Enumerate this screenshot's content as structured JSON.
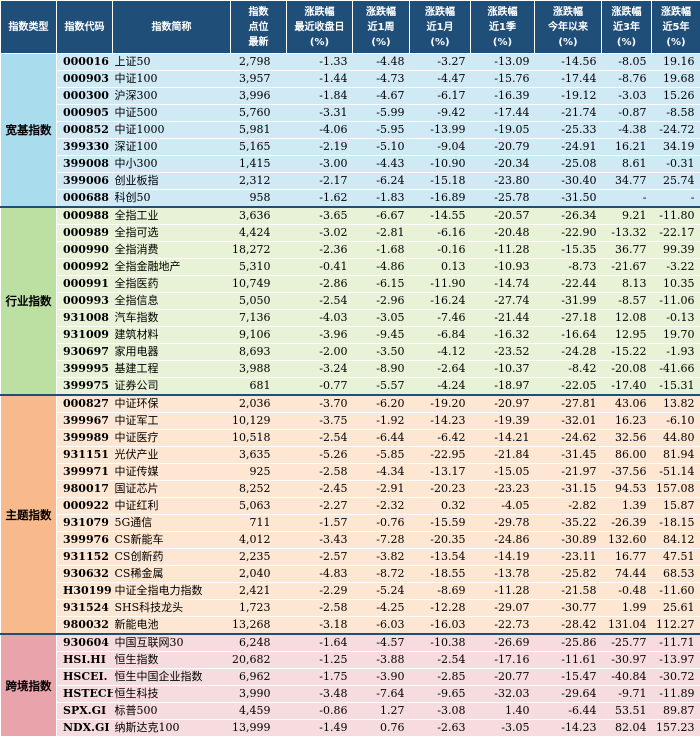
{
  "headers": [
    "指数类型",
    "指数代码",
    "指数简称",
    "指数\n点位\n最新",
    "涨跌幅\n最近收盘日\n(%)",
    "涨跌幅\n近1周\n(%)",
    "涨跌幅\n近1月\n(%)",
    "涨跌幅\n近1季\n(%)",
    "涨跌幅\n今年以来\n(%)",
    "涨跌幅\n近3年\n(%)",
    "涨跌幅\n近5年\n(%)"
  ],
  "groups": [
    {
      "label": "宽基指数",
      "rows": [
        [
          "000016",
          "上证50",
          "2,798",
          "-1.33",
          "-4.48",
          "-3.27",
          "-13.09",
          "-14.56",
          "-8.05",
          "19.16"
        ],
        [
          "000903",
          "中证100",
          "3,957",
          "-1.44",
          "-4.73",
          "-4.47",
          "-15.76",
          "-17.44",
          "-8.76",
          "19.68"
        ],
        [
          "000300",
          "沪深300",
          "3,996",
          "-1.84",
          "-4.67",
          "-6.17",
          "-16.39",
          "-19.12",
          "-3.03",
          "15.26"
        ],
        [
          "000905",
          "中证500",
          "5,760",
          "-3.31",
          "-5.99",
          "-9.42",
          "-17.44",
          "-21.74",
          "-0.87",
          "-8.58"
        ],
        [
          "000852",
          "中证1000",
          "5,981",
          "-4.06",
          "-5.95",
          "-13.99",
          "-19.05",
          "-25.33",
          "-4.38",
          "-24.72"
        ],
        [
          "399330",
          "深证100",
          "5,165",
          "-2.19",
          "-5.10",
          "-9.04",
          "-20.79",
          "-24.91",
          "16.21",
          "34.19"
        ],
        [
          "399008",
          "中小300",
          "1,415",
          "-3.00",
          "-4.43",
          "-10.90",
          "-20.34",
          "-25.08",
          "8.61",
          "-0.31"
        ],
        [
          "399006",
          "创业板指",
          "2,312",
          "-2.17",
          "-6.24",
          "-15.18",
          "-23.80",
          "-30.40",
          "34.77",
          "25.74"
        ],
        [
          "000688",
          "科创50",
          "958",
          "-1.62",
          "-1.83",
          "-16.89",
          "-25.78",
          "-31.50",
          "-",
          "-"
        ]
      ]
    },
    {
      "label": "行业指数",
      "rows": [
        [
          "000988",
          "全指工业",
          "3,636",
          "-3.65",
          "-6.67",
          "-14.55",
          "-20.57",
          "-26.34",
          "9.21",
          "-11.80"
        ],
        [
          "000989",
          "全指可选",
          "4,424",
          "-3.02",
          "-2.81",
          "-6.16",
          "-20.48",
          "-22.90",
          "-13.32",
          "-22.17"
        ],
        [
          "000990",
          "全指消费",
          "18,272",
          "-2.36",
          "-1.68",
          "-0.16",
          "-11.28",
          "-15.35",
          "36.77",
          "99.39"
        ],
        [
          "000992",
          "全指金融地产",
          "5,310",
          "-0.41",
          "-4.86",
          "0.13",
          "-10.93",
          "-8.73",
          "-21.67",
          "-3.22"
        ],
        [
          "000991",
          "全指医药",
          "10,749",
          "-2.86",
          "-6.15",
          "-11.90",
          "-14.74",
          "-22.44",
          "8.13",
          "10.35"
        ],
        [
          "000993",
          "全指信息",
          "5,050",
          "-2.54",
          "-2.96",
          "-16.24",
          "-27.74",
          "-31.99",
          "-8.57",
          "-11.06"
        ],
        [
          "931008",
          "汽车指数",
          "7,136",
          "-4.03",
          "-3.05",
          "-7.46",
          "-21.44",
          "-27.18",
          "12.08",
          "-0.13"
        ],
        [
          "931009",
          "建筑材料",
          "9,106",
          "-3.96",
          "-9.45",
          "-6.84",
          "-16.32",
          "-16.64",
          "12.95",
          "19.70"
        ],
        [
          "930697",
          "家用电器",
          "8,693",
          "-2.00",
          "-3.50",
          "-4.12",
          "-23.52",
          "-24.28",
          "-15.22",
          "-1.93"
        ],
        [
          "399995",
          "基建工程",
          "3,988",
          "-3.24",
          "-8.90",
          "-2.64",
          "-10.37",
          "-8.42",
          "-20.08",
          "-41.66"
        ],
        [
          "399975",
          "证券公司",
          "681",
          "-0.77",
          "-5.57",
          "-4.24",
          "-18.97",
          "-22.05",
          "-17.40",
          "-15.31"
        ]
      ]
    },
    {
      "label": "主题指数",
      "rows": [
        [
          "000827",
          "中证环保",
          "2,036",
          "-3.70",
          "-6.20",
          "-19.20",
          "-20.97",
          "-27.81",
          "43.06",
          "13.82"
        ],
        [
          "399967",
          "中证军工",
          "10,129",
          "-3.75",
          "-1.92",
          "-14.23",
          "-19.39",
          "-32.01",
          "16.23",
          "-6.10"
        ],
        [
          "399989",
          "中证医疗",
          "10,518",
          "-2.54",
          "-6.44",
          "-6.42",
          "-14.21",
          "-24.62",
          "32.56",
          "44.80"
        ],
        [
          "931151",
          "光伏产业",
          "3,635",
          "-5.26",
          "-5.85",
          "-22.95",
          "-21.84",
          "-31.45",
          "86.00",
          "81.94"
        ],
        [
          "399971",
          "中证传媒",
          "925",
          "-2.58",
          "-4.34",
          "-13.17",
          "-15.05",
          "-21.97",
          "-37.56",
          "-51.14"
        ],
        [
          "980017",
          "国证芯片",
          "8,252",
          "-2.45",
          "-2.91",
          "-20.23",
          "-23.23",
          "-31.15",
          "94.53",
          "157.08"
        ],
        [
          "000922",
          "中证红利",
          "5,063",
          "-2.27",
          "-2.32",
          "0.32",
          "-4.05",
          "-2.82",
          "1.39",
          "15.87"
        ],
        [
          "931079",
          "5G通信",
          "711",
          "-1.57",
          "-0.76",
          "-15.59",
          "-29.78",
          "-35.22",
          "-26.39",
          "-18.15"
        ],
        [
          "399976",
          "CS新能车",
          "4,012",
          "-3.43",
          "-7.28",
          "-20.35",
          "-24.86",
          "-30.89",
          "132.60",
          "84.12"
        ],
        [
          "931152",
          "CS创新药",
          "2,235",
          "-2.57",
          "-3.82",
          "-13.54",
          "-14.19",
          "-23.11",
          "16.77",
          "47.51"
        ],
        [
          "930632",
          "CS稀金属",
          "2,040",
          "-4.83",
          "-8.72",
          "-18.55",
          "-13.78",
          "-25.82",
          "74.44",
          "68.53"
        ],
        [
          "H30199",
          "中证全指电力指数",
          "2,421",
          "-2.29",
          "-5.24",
          "-8.69",
          "-11.28",
          "-21.58",
          "-0.48",
          "-11.60"
        ],
        [
          "931524",
          "SHS科技龙头",
          "1,723",
          "-2.58",
          "-4.25",
          "-12.28",
          "-29.07",
          "-30.77",
          "1.99",
          "25.61"
        ],
        [
          "980032",
          "新能电池",
          "13,268",
          "-3.18",
          "-6.03",
          "-16.03",
          "-22.73",
          "-28.42",
          "131.04",
          "112.27"
        ]
      ]
    },
    {
      "label": "跨境指数",
      "rows": [
        [
          "930604",
          "中国互联网30",
          "6,248",
          "-1.64",
          "-4.57",
          "-10.38",
          "-26.69",
          "-25.86",
          "-25.77",
          "-11.71"
        ],
        [
          "HSI.HI",
          "恒生指数",
          "20,682",
          "-1.25",
          "-3.88",
          "-2.54",
          "-17.16",
          "-11.61",
          "-30.97",
          "-13.97"
        ],
        [
          "HSCEI.",
          "恒生中国企业指数",
          "6,962",
          "-1.75",
          "-3.90",
          "-2.85",
          "-20.77",
          "-15.47",
          "-40.84",
          "-30.72"
        ],
        [
          "HSTECH",
          "恒生科技",
          "3,990",
          "-3.48",
          "-7.64",
          "-9.65",
          "-32.03",
          "-29.64",
          "-9.71",
          "-11.89"
        ],
        [
          "SPX.GI",
          "标普500",
          "4,459",
          "-0.86",
          "1.27",
          "-3.08",
          "1.40",
          "-6.44",
          "53.51",
          "89.87"
        ],
        [
          "NDX.GI",
          "纳斯达克100",
          "13,999",
          "-1.49",
          "0.76",
          "-2.63",
          "-3.05",
          "-14.23",
          "82.04",
          "157.23"
        ]
      ]
    }
  ]
}
